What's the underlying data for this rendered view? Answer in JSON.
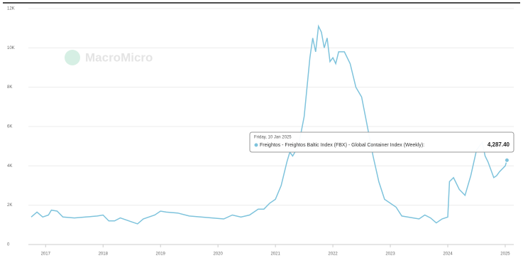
{
  "chart_data": {
    "type": "line",
    "watermark": "MacroMicro",
    "xlim": [
      2016.7,
      2025.05
    ],
    "xticks": [
      2017,
      2018,
      2019,
      2020,
      2021,
      2022,
      2023,
      2024,
      2025
    ],
    "ylim": [
      0,
      12000
    ],
    "yticks": [
      0,
      {
        "value": 2000,
        "label": "2K"
      },
      {
        "value": 4000,
        "label": "4K"
      },
      {
        "value": 6000,
        "label": "6K"
      },
      {
        "value": 8000,
        "label": "8K"
      },
      {
        "value": 10000,
        "label": "10K"
      },
      {
        "value": 12000,
        "label": "12K"
      }
    ],
    "grid": true,
    "series": [
      {
        "name": "Freightos - Freightos Baltic Index (FBX) - Global Container Index (Weekly):",
        "color": "#7ec3dc",
        "x": [
          2016.75,
          2016.85,
          2016.95,
          2017.05,
          2017.1,
          2017.2,
          2017.3,
          2017.5,
          2017.7,
          2017.9,
          2018.0,
          2018.1,
          2018.2,
          2018.3,
          2018.5,
          2018.6,
          2018.7,
          2018.9,
          2019.0,
          2019.1,
          2019.3,
          2019.5,
          2019.7,
          2019.9,
          2020.1,
          2020.25,
          2020.4,
          2020.55,
          2020.7,
          2020.8,
          2020.9,
          2021.0,
          2021.1,
          2021.2,
          2021.25,
          2021.3,
          2021.4,
          2021.5,
          2021.6,
          2021.65,
          2021.7,
          2021.75,
          2021.8,
          2021.85,
          2021.9,
          2021.95,
          2022.0,
          2022.05,
          2022.1,
          2022.2,
          2022.3,
          2022.4,
          2022.5,
          2022.6,
          2022.7,
          2022.8,
          2022.9,
          2023.0,
          2023.1,
          2023.2,
          2023.3,
          2023.4,
          2023.5,
          2023.6,
          2023.7,
          2023.8,
          2023.9,
          2024.0,
          2024.03,
          2024.1,
          2024.2,
          2024.3,
          2024.4,
          2024.5,
          2024.6,
          2024.65,
          2024.7,
          2024.8,
          2024.85,
          2024.9,
          2025.0,
          2025.03
        ],
        "values": [
          1400,
          1650,
          1400,
          1500,
          1750,
          1700,
          1400,
          1350,
          1400,
          1450,
          1500,
          1200,
          1200,
          1350,
          1150,
          1050,
          1300,
          1500,
          1700,
          1650,
          1600,
          1450,
          1400,
          1350,
          1300,
          1500,
          1400,
          1500,
          1800,
          1800,
          2100,
          2300,
          3000,
          4200,
          4700,
          4500,
          5000,
          6500,
          9500,
          10500,
          9800,
          11100,
          10800,
          10000,
          10500,
          9300,
          9500,
          9200,
          9800,
          9800,
          9200,
          8000,
          7500,
          6000,
          4500,
          3200,
          2300,
          2100,
          1900,
          1450,
          1400,
          1350,
          1300,
          1500,
          1350,
          1100,
          1300,
          1400,
          3200,
          3400,
          2800,
          2500,
          3500,
          4800,
          5200,
          4500,
          4200,
          3400,
          3500,
          3700,
          4000,
          4287.4
        ]
      }
    ],
    "tooltip": {
      "date": "Friday, 10 Jan 2025",
      "value_label": "4,287.40"
    }
  }
}
